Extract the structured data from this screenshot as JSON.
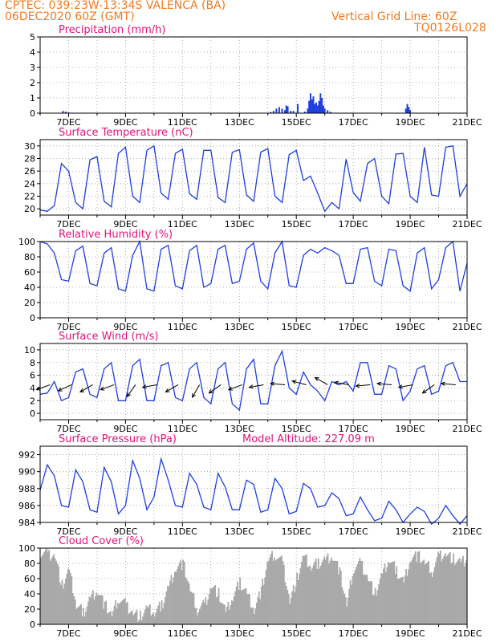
{
  "header": {
    "line1": "CPTEC:   039:23W-13:34S   VALENCA (BA)",
    "line2": "06DEC2020 60Z (GMT)",
    "grid_note": "Vertical Grid Line: 60Z",
    "code": "TQ0126L028"
  },
  "colors": {
    "header": "#f07a1e",
    "title": "#e0137a",
    "line": "#1f3fdc",
    "bar": "#1f3fdc",
    "cloud": "#a9a9a9",
    "grid": "#9a9a9a",
    "axis": "#000000"
  },
  "chart_data": [
    {
      "type": "bar",
      "title": "Precipitation (mm/h)",
      "x_ticks": [
        "7DEC",
        "9DEC",
        "11DEC",
        "13DEC",
        "15DEC",
        "17DEC",
        "19DEC",
        "21DEC"
      ],
      "ylim": [
        0,
        5
      ],
      "y_ticks": [
        0,
        1,
        2,
        3,
        4,
        5
      ],
      "x": [
        6.8,
        6.9,
        7.0,
        14.1,
        14.2,
        14.3,
        14.4,
        14.5,
        14.6,
        14.65,
        14.7,
        14.8,
        14.9,
        15.05,
        15.3,
        15.4,
        15.45,
        15.5,
        15.55,
        15.6,
        15.65,
        15.7,
        15.75,
        15.8,
        15.85,
        15.9,
        15.95,
        16.0,
        16.1,
        16.2,
        18.85,
        18.9,
        18.95,
        19.0
      ],
      "values": [
        0.15,
        0.1,
        0.05,
        0.08,
        0.15,
        0.3,
        0.4,
        0.3,
        0.2,
        0.5,
        0.45,
        0.15,
        0.15,
        0.6,
        0.1,
        0.3,
        0.8,
        1.3,
        0.9,
        1.1,
        0.6,
        0.7,
        0.5,
        0.8,
        1.3,
        1.0,
        0.5,
        0.3,
        0.2,
        0.1,
        0.3,
        0.6,
        0.4,
        0.2
      ],
      "grid": true
    },
    {
      "type": "line",
      "title": "Surface Temperature (nC)",
      "x_ticks": [
        "7DEC",
        "9DEC",
        "11DEC",
        "13DEC",
        "15DEC",
        "17DEC",
        "19DEC",
        "21DEC"
      ],
      "ylim": [
        19,
        31
      ],
      "y_ticks": [
        20,
        22,
        24,
        26,
        28,
        30
      ],
      "x": [
        6.0,
        6.25,
        6.5,
        6.75,
        7.0,
        7.25,
        7.5,
        7.75,
        8.0,
        8.25,
        8.5,
        8.75,
        9.0,
        9.25,
        9.5,
        9.75,
        10.0,
        10.25,
        10.5,
        10.75,
        11.0,
        11.25,
        11.5,
        11.75,
        12.0,
        12.25,
        12.5,
        12.75,
        13.0,
        13.25,
        13.5,
        13.75,
        14.0,
        14.25,
        14.5,
        14.75,
        15.0,
        15.25,
        15.5,
        15.75,
        16.0,
        16.25,
        16.5,
        16.75,
        17.0,
        17.25,
        17.5,
        17.75,
        18.0,
        18.25,
        18.5,
        18.75,
        19.0,
        19.25,
        19.5,
        19.75,
        20.0,
        20.25,
        20.5,
        20.75,
        21.0
      ],
      "values": [
        19.8,
        19.6,
        20.5,
        27.2,
        26.0,
        21.0,
        20.0,
        27.8,
        28.3,
        21.2,
        20.3,
        28.8,
        29.8,
        22.0,
        21.0,
        29.3,
        30.0,
        22.5,
        21.5,
        28.8,
        29.5,
        22.4,
        21.5,
        29.3,
        29.3,
        21.8,
        21.0,
        29.0,
        29.4,
        22.2,
        21.2,
        29.0,
        29.6,
        22.0,
        21.0,
        28.6,
        29.3,
        24.5,
        25.2,
        22.5,
        19.6,
        21.0,
        20.0,
        27.9,
        22.6,
        21.2,
        27.2,
        28.0,
        22.0,
        20.8,
        28.7,
        28.8,
        22.0,
        21.0,
        29.8,
        22.2,
        22.0,
        29.8,
        30.0,
        22.0,
        24.0
      ],
      "grid": true
    },
    {
      "type": "line",
      "title": "Relative Humidity (%)",
      "x_ticks": [
        "7DEC",
        "9DEC",
        "11DEC",
        "13DEC",
        "15DEC",
        "17DEC",
        "19DEC",
        "21DEC"
      ],
      "ylim": [
        0,
        100
      ],
      "y_ticks": [
        0,
        20,
        40,
        60,
        80,
        100
      ],
      "x": [
        6.0,
        6.25,
        6.5,
        6.75,
        7.0,
        7.25,
        7.5,
        7.75,
        8.0,
        8.25,
        8.5,
        8.75,
        9.0,
        9.25,
        9.5,
        9.75,
        10.0,
        10.25,
        10.5,
        10.75,
        11.0,
        11.25,
        11.5,
        11.75,
        12.0,
        12.25,
        12.5,
        12.75,
        13.0,
        13.25,
        13.5,
        13.75,
        14.0,
        14.25,
        14.5,
        14.75,
        15.0,
        15.25,
        15.5,
        15.75,
        16.0,
        16.25,
        16.5,
        16.75,
        17.0,
        17.25,
        17.5,
        17.75,
        18.0,
        18.25,
        18.5,
        18.75,
        19.0,
        19.25,
        19.5,
        19.75,
        20.0,
        20.25,
        20.5,
        20.75,
        21.0
      ],
      "values": [
        100,
        97,
        85,
        50,
        48,
        88,
        94,
        45,
        42,
        85,
        92,
        38,
        35,
        82,
        100,
        38,
        35,
        90,
        95,
        42,
        38,
        88,
        95,
        40,
        45,
        90,
        95,
        45,
        48,
        90,
        98,
        48,
        38,
        85,
        100,
        42,
        40,
        82,
        90,
        85,
        92,
        88,
        82,
        45,
        45,
        90,
        92,
        48,
        42,
        90,
        88,
        42,
        35,
        85,
        92,
        38,
        50,
        92,
        100,
        35,
        72
      ],
      "grid": true
    },
    {
      "type": "line",
      "title": "Surface Wind (m/s)",
      "x_ticks": [
        "7DEC",
        "9DEC",
        "11DEC",
        "13DEC",
        "15DEC",
        "17DEC",
        "19DEC",
        "21DEC"
      ],
      "ylim": [
        -1,
        11
      ],
      "y_ticks": [
        0,
        2,
        4,
        6,
        8,
        10
      ],
      "x": [
        6.0,
        6.25,
        6.5,
        6.75,
        7.0,
        7.25,
        7.5,
        7.75,
        8.0,
        8.25,
        8.5,
        8.75,
        9.0,
        9.25,
        9.5,
        9.75,
        10.0,
        10.25,
        10.5,
        10.75,
        11.0,
        11.25,
        11.5,
        11.75,
        12.0,
        12.25,
        12.5,
        12.75,
        13.0,
        13.25,
        13.5,
        13.75,
        14.0,
        14.25,
        14.5,
        14.75,
        15.0,
        15.25,
        15.5,
        15.75,
        16.0,
        16.25,
        16.5,
        16.75,
        17.0,
        17.25,
        17.5,
        17.75,
        18.0,
        18.25,
        18.5,
        18.75,
        19.0,
        19.25,
        19.5,
        19.75,
        20.0,
        20.25,
        20.5,
        20.75,
        21.0
      ],
      "values": [
        3.0,
        3.2,
        5.0,
        2.0,
        2.5,
        6.5,
        7.0,
        3.0,
        2.5,
        7.0,
        8.0,
        2.0,
        2.0,
        7.5,
        8.5,
        2.0,
        2.0,
        7.5,
        8.0,
        2.5,
        2.0,
        7.0,
        8.0,
        2.5,
        1.5,
        7.0,
        8.0,
        1.5,
        0.5,
        7.0,
        8.5,
        1.5,
        1.5,
        7.5,
        9.8,
        4.0,
        3.0,
        6.5,
        4.5,
        3.5,
        2.0,
        5.0,
        4.5,
        5.0,
        3.5,
        8.0,
        8.0,
        3.0,
        3.0,
        7.5,
        7.0,
        2.0,
        3.5,
        7.0,
        7.5,
        3.0,
        3.5,
        7.5,
        8.0,
        5.0,
        5.0
      ],
      "arrows": {
        "x": [
          6.35,
          7.1,
          7.85,
          8.6,
          9.35,
          10.1,
          10.85,
          11.6,
          12.35,
          13.1,
          13.85,
          14.6,
          15.35,
          16.1,
          16.85,
          17.6,
          18.35,
          19.1,
          19.85,
          20.6
        ],
        "dir_deg": [
          200,
          205,
          210,
          200,
          235,
          190,
          210,
          240,
          215,
          200,
          190,
          175,
          165,
          150,
          170,
          185,
          175,
          190,
          215,
          175
        ]
      },
      "grid": true
    },
    {
      "type": "line",
      "title": "Surface Pressure (hPa)",
      "subtitle": "Model Altitude: 227.09 m",
      "x_ticks": [
        "7DEC",
        "9DEC",
        "11DEC",
        "13DEC",
        "15DEC",
        "17DEC",
        "19DEC",
        "21DEC"
      ],
      "ylim": [
        984,
        993
      ],
      "y_ticks": [
        984,
        986,
        988,
        990,
        992
      ],
      "x": [
        6.0,
        6.25,
        6.5,
        6.75,
        7.0,
        7.25,
        7.5,
        7.75,
        8.0,
        8.25,
        8.5,
        8.75,
        9.0,
        9.25,
        9.5,
        9.75,
        10.0,
        10.25,
        10.5,
        10.75,
        11.0,
        11.25,
        11.5,
        11.75,
        12.0,
        12.25,
        12.5,
        12.75,
        13.0,
        13.25,
        13.5,
        13.75,
        14.0,
        14.25,
        14.5,
        14.75,
        15.0,
        15.25,
        15.5,
        15.75,
        16.0,
        16.25,
        16.5,
        16.75,
        17.0,
        17.25,
        17.5,
        17.75,
        18.0,
        18.25,
        18.5,
        18.75,
        19.0,
        19.25,
        19.5,
        19.75,
        20.0,
        20.25,
        20.5,
        20.75,
        21.0
      ],
      "values": [
        987.8,
        990.8,
        989.5,
        986.0,
        985.8,
        990.2,
        988.8,
        985.5,
        985.2,
        990.5,
        988.8,
        985.0,
        986.0,
        991.3,
        989.2,
        985.5,
        987.0,
        991.5,
        989.0,
        986.0,
        985.8,
        989.8,
        988.5,
        985.8,
        985.5,
        989.8,
        988.2,
        985.5,
        985.5,
        989.0,
        988.5,
        985.2,
        985.5,
        989.2,
        988.0,
        985.0,
        985.3,
        988.6,
        988.0,
        985.8,
        986.0,
        987.5,
        986.8,
        984.8,
        985.0,
        987.0,
        985.5,
        984.2,
        984.5,
        986.5,
        985.5,
        984.0,
        985.0,
        985.8,
        985.3,
        983.8,
        984.5,
        986.0,
        984.8,
        983.8,
        984.8
      ],
      "grid": true
    },
    {
      "type": "area",
      "title": "Cloud Cover (%)",
      "x_ticks": [
        "7DEC",
        "9DEC",
        "11DEC",
        "13DEC",
        "15DEC",
        "17DEC",
        "19DEC",
        "21DEC"
      ],
      "ylim": [
        0,
        100
      ],
      "y_ticks": [
        0,
        20,
        40,
        60,
        80,
        100
      ],
      "x": [
        6.0,
        6.25,
        6.5,
        6.75,
        7.0,
        7.25,
        7.5,
        7.75,
        8.0,
        8.25,
        8.5,
        8.75,
        9.0,
        9.25,
        9.5,
        9.75,
        10.0,
        10.25,
        10.5,
        10.75,
        11.0,
        11.25,
        11.5,
        11.75,
        12.0,
        12.25,
        12.5,
        12.75,
        13.0,
        13.25,
        13.5,
        13.75,
        14.0,
        14.25,
        14.5,
        14.75,
        15.0,
        15.25,
        15.5,
        15.75,
        16.0,
        16.25,
        16.5,
        16.75,
        17.0,
        17.25,
        17.5,
        17.75,
        18.0,
        18.25,
        18.5,
        18.75,
        19.0,
        19.25,
        19.5,
        19.75,
        20.0,
        20.25,
        20.5,
        20.75,
        21.0
      ],
      "values": [
        95,
        92,
        90,
        50,
        70,
        25,
        15,
        35,
        45,
        25,
        12,
        35,
        25,
        15,
        10,
        20,
        15,
        25,
        50,
        75,
        80,
        45,
        20,
        25,
        50,
        40,
        15,
        35,
        55,
        40,
        20,
        45,
        85,
        92,
        80,
        30,
        60,
        88,
        75,
        80,
        85,
        90,
        70,
        25,
        75,
        80,
        60,
        40,
        65,
        85,
        70,
        55,
        88,
        90,
        80,
        70,
        90,
        92,
        85,
        80,
        85
      ],
      "grid": true
    }
  ]
}
